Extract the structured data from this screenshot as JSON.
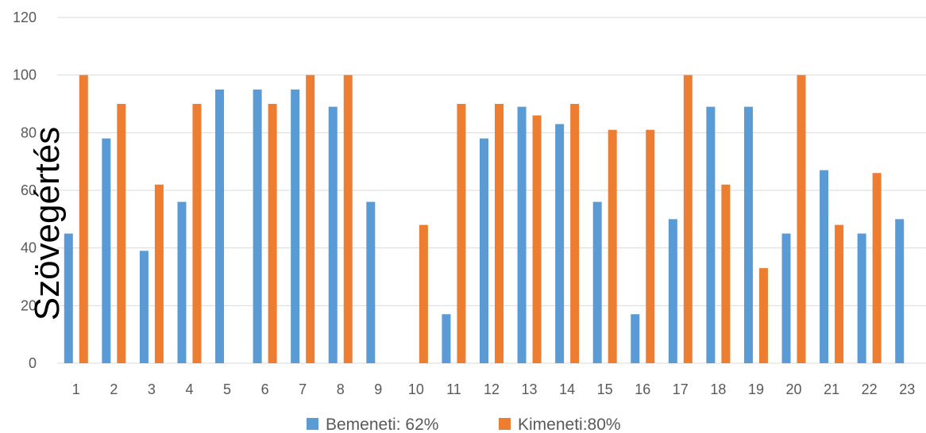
{
  "chart_data": {
    "type": "bar",
    "title": "",
    "xlabel": "",
    "ylabel": "Szövegértés",
    "ylim": [
      0,
      120
    ],
    "yticks": [
      0,
      20,
      40,
      60,
      80,
      100,
      120
    ],
    "categories": [
      "1",
      "2",
      "3",
      "4",
      "5",
      "6",
      "7",
      "8",
      "9",
      "10",
      "11",
      "12",
      "13",
      "14",
      "15",
      "16",
      "17",
      "18",
      "19",
      "20",
      "21",
      "22",
      "23"
    ],
    "series": [
      {
        "name": "Bemeneti: 62%",
        "color": "#5B9BD5",
        "values": [
          45,
          78,
          39,
          56,
          95,
          95,
          95,
          89,
          56,
          0,
          17,
          78,
          89,
          83,
          56,
          17,
          50,
          89,
          89,
          45,
          67,
          45,
          50
        ]
      },
      {
        "name": "Kimeneti:80%",
        "color": "#ED7D31",
        "values": [
          100,
          90,
          62,
          90,
          0,
          90,
          100,
          100,
          0,
          48,
          90,
          90,
          86,
          90,
          81,
          81,
          100,
          62,
          33,
          100,
          48,
          66,
          0
        ]
      }
    ],
    "grid": true,
    "legend": "bottom"
  }
}
